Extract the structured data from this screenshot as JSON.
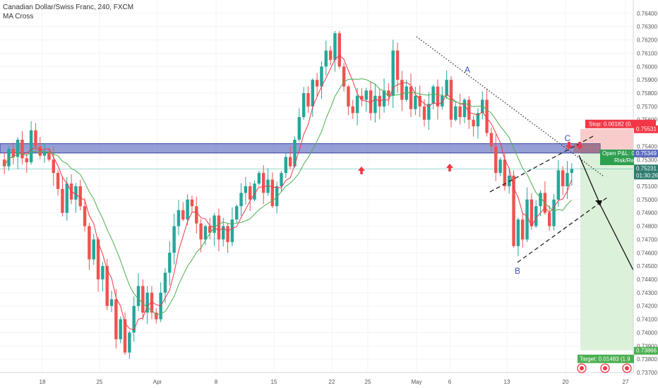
{
  "header": {
    "symbol_line": "Canadian Dollar/Swiss Franc, 240, FXCM",
    "indicator": "MA Cross"
  },
  "colors": {
    "candle_up": "#26a69a",
    "candle_down": "#ef5350",
    "ma_fast": "#f23645",
    "ma_slow": "#4caf50",
    "zone": "#3f51b5",
    "stop_tag": "#f23645",
    "target_tag": "#4caf50",
    "price_tag": "#2e7d6f"
  },
  "chart_data": {
    "type": "candlestick",
    "instrument": "Canadian Dollar/Swiss Franc",
    "timeframe": "240",
    "source": "FXCM",
    "y_axis": {
      "min": 0.737,
      "max": 0.765,
      "ticks": [
        "0.76400",
        "0.76300",
        "0.76200",
        "0.76100",
        "0.76000",
        "0.75900",
        "0.75800",
        "0.75700",
        "0.75600",
        "0.75400",
        "0.75300",
        "0.75100",
        "0.75000",
        "0.74900",
        "0.74800",
        "0.74700",
        "0.74600",
        "0.74500",
        "0.74400",
        "0.74300",
        "0.74200",
        "0.74100",
        "0.74000",
        "0.73900",
        "0.73800",
        "0.73700"
      ]
    },
    "x_axis": {
      "ticks": [
        "18",
        "25",
        "Apr",
        "8",
        "15",
        "22",
        "25",
        "May",
        "6",
        "13",
        "20",
        "27"
      ]
    },
    "closes": [
      0.7525,
      0.7538,
      0.7532,
      0.7545,
      0.7531,
      0.7528,
      0.7552,
      0.754,
      0.7533,
      0.7536,
      0.753,
      0.752,
      0.7508,
      0.749,
      0.7512,
      0.75,
      0.751,
      0.7495,
      0.748,
      0.7455,
      0.747,
      0.744,
      0.745,
      0.742,
      0.7425,
      0.7395,
      0.741,
      0.7385,
      0.74,
      0.742,
      0.7435,
      0.7415,
      0.743,
      0.7415,
      0.741,
      0.743,
      0.7445,
      0.746,
      0.748,
      0.7492,
      0.7485,
      0.75,
      0.7495,
      0.7482,
      0.747,
      0.748,
      0.7475,
      0.7488,
      0.747,
      0.748,
      0.7468,
      0.7485,
      0.7495,
      0.7505,
      0.751,
      0.75,
      0.7512,
      0.752,
      0.7505,
      0.7515,
      0.7495,
      0.751,
      0.752,
      0.7532,
      0.7525,
      0.7545,
      0.7562,
      0.758,
      0.757,
      0.759,
      0.7585,
      0.76,
      0.7612,
      0.7605,
      0.7625,
      0.76,
      0.7585,
      0.757,
      0.7565,
      0.7578,
      0.7575,
      0.7582,
      0.7565,
      0.7578,
      0.757,
      0.7582,
      0.7578,
      0.7612,
      0.759,
      0.7575,
      0.7585,
      0.7568,
      0.7578,
      0.757,
      0.756,
      0.7572,
      0.7585,
      0.757,
      0.7578,
      0.759,
      0.756,
      0.757,
      0.7562,
      0.7575,
      0.756,
      0.7555,
      0.7565,
      0.7575,
      0.755,
      0.754,
      0.752,
      0.753,
      0.751,
      0.7518,
      0.7465,
      0.7485,
      0.747,
      0.75,
      0.748,
      0.7495,
      0.7505,
      0.749,
      0.748,
      0.75,
      0.7522,
      0.751,
      0.752,
      0.7523
    ],
    "moving_averages": [
      {
        "name": "fast",
        "color": "#f23645"
      },
      {
        "name": "slow",
        "color": "#4caf50"
      }
    ],
    "horizontal_zone": {
      "from": 0.7535,
      "to": 0.7542
    },
    "horizontal_line": 0.7523,
    "pattern_labels": [
      "A",
      "B",
      "C"
    ],
    "price_tags": [
      {
        "id": "stop",
        "text": "Stop: 0.00182 (0.",
        "price": 0.75531,
        "price_label": "0.75531"
      },
      {
        "id": "entry",
        "text": "0.75349",
        "price": 0.75349
      },
      {
        "id": "current",
        "text": "0.75231",
        "price": 0.75231,
        "sub": "01:30:26"
      },
      {
        "id": "target",
        "text": "Target: 0.01483 (1.9",
        "price": 0.73866,
        "price_label": "0.73866"
      }
    ],
    "position_box": {
      "entry": 0.75349,
      "stop": 0.75531,
      "target": 0.73866,
      "label_top": "Open P&L: 0",
      "label_bottom": "Risk/Re"
    }
  }
}
